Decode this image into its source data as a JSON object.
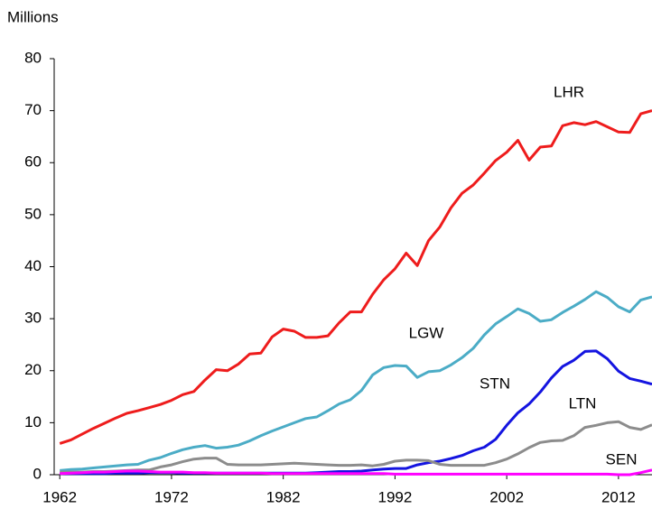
{
  "chart_data": {
    "type": "line",
    "ylabel": "Millions",
    "x": [
      1962,
      1963,
      1964,
      1965,
      1966,
      1967,
      1968,
      1969,
      1970,
      1971,
      1972,
      1973,
      1974,
      1975,
      1976,
      1977,
      1978,
      1979,
      1980,
      1981,
      1982,
      1983,
      1984,
      1985,
      1986,
      1987,
      1988,
      1989,
      1990,
      1991,
      1992,
      1993,
      1994,
      1995,
      1996,
      1997,
      1998,
      1999,
      2000,
      2001,
      2002,
      2003,
      2004,
      2005,
      2006,
      2007,
      2008,
      2009,
      2010,
      2011,
      2012,
      2013,
      2014,
      2015
    ],
    "xlim": [
      1961.5,
      2015
    ],
    "xticks": [
      1962,
      1972,
      1982,
      1992,
      2002,
      2012
    ],
    "ylim": [
      0,
      80
    ],
    "yticks": [
      0,
      10,
      20,
      30,
      40,
      50,
      60,
      70,
      80
    ],
    "series": [
      {
        "name": "LHR",
        "color": "#ee1c1c",
        "values": [
          6.0,
          6.7,
          7.8,
          8.9,
          9.9,
          10.9,
          11.8,
          12.3,
          12.9,
          13.5,
          14.3,
          15.4,
          16.0,
          18.2,
          20.2,
          20.0,
          21.3,
          23.2,
          23.4,
          26.5,
          28.0,
          27.6,
          26.4,
          26.4,
          26.7,
          29.2,
          31.3,
          31.3,
          34.7,
          37.5,
          39.6,
          42.6,
          40.2,
          45.0,
          47.6,
          51.3,
          54.1,
          55.7,
          58.0,
          60.4,
          62.0,
          64.3,
          60.5,
          63.0,
          63.2,
          67.1,
          67.7,
          67.3,
          67.9,
          66.9,
          65.9,
          65.8,
          69.4,
          70.0
        ]
      },
      {
        "name": "LGW",
        "color": "#4bacc6",
        "values": [
          0.8,
          1.0,
          1.1,
          1.3,
          1.5,
          1.7,
          1.9,
          2.0,
          2.8,
          3.3,
          4.1,
          4.8,
          5.3,
          5.6,
          5.1,
          5.3,
          5.7,
          6.5,
          7.5,
          8.4,
          9.2,
          10.0,
          10.8,
          11.1,
          12.3,
          13.6,
          14.4,
          16.2,
          19.2,
          20.6,
          21.0,
          20.9,
          18.7,
          19.8,
          20.0,
          21.1,
          22.5,
          24.3,
          26.9,
          29.0,
          30.4,
          31.9,
          31.0,
          29.5,
          29.8,
          31.2,
          32.4,
          33.7,
          35.2,
          34.1,
          32.3,
          31.3,
          33.6,
          34.2
        ]
      },
      {
        "name": "STN",
        "color": "#1414e0",
        "values": [
          0.2,
          0.2,
          0.2,
          0.2,
          0.2,
          0.3,
          0.3,
          0.3,
          0.4,
          0.4,
          0.4,
          0.3,
          0.3,
          0.3,
          0.3,
          0.3,
          0.3,
          0.3,
          0.3,
          0.3,
          0.3,
          0.3,
          0.3,
          0.4,
          0.5,
          0.6,
          0.6,
          0.7,
          0.9,
          1.1,
          1.2,
          1.2,
          1.9,
          2.3,
          2.6,
          3.1,
          3.7,
          4.6,
          5.3,
          6.8,
          9.5,
          11.9,
          13.6,
          15.9,
          18.6,
          20.8,
          22.0,
          23.7,
          23.8,
          22.3,
          19.9,
          18.5,
          18.0,
          17.4
        ]
      },
      {
        "name": "LTN",
        "color": "#8c8c8c",
        "values": [
          0.5,
          0.5,
          0.5,
          0.6,
          0.6,
          0.7,
          0.8,
          0.9,
          0.9,
          1.5,
          1.9,
          2.5,
          3.0,
          3.2,
          3.2,
          2.0,
          1.9,
          1.9,
          1.9,
          2.0,
          2.1,
          2.2,
          2.1,
          2.0,
          1.9,
          1.8,
          1.8,
          1.9,
          1.7,
          2.0,
          2.6,
          2.8,
          2.8,
          2.7,
          2.0,
          1.8,
          1.8,
          1.8,
          1.8,
          2.3,
          3.0,
          4.0,
          5.2,
          6.2,
          6.5,
          6.6,
          7.5,
          9.1,
          9.5,
          10.0,
          10.2,
          9.1,
          8.7,
          9.6
        ]
      },
      {
        "name": "SEN",
        "color": "#ff00ff",
        "values": [
          0.2,
          0.3,
          0.4,
          0.5,
          0.5,
          0.6,
          0.7,
          0.7,
          0.6,
          0.5,
          0.5,
          0.5,
          0.4,
          0.4,
          0.3,
          0.3,
          0.3,
          0.3,
          0.3,
          0.2,
          0.2,
          0.2,
          0.2,
          0.2,
          0.2,
          0.2,
          0.2,
          0.2,
          0.2,
          0.2,
          0.1,
          0.1,
          0.1,
          0.1,
          0.1,
          0.1,
          0.1,
          0.1,
          0.1,
          0.1,
          0.1,
          0.1,
          0.1,
          0.1,
          0.1,
          0.1,
          0.1,
          0.1,
          0.1,
          0.1,
          0.0,
          0.0,
          0.4,
          0.9
        ]
      }
    ]
  }
}
